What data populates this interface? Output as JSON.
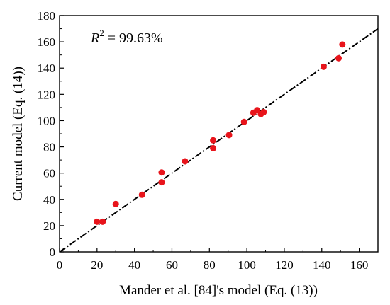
{
  "chart_data": {
    "type": "scatter",
    "title": "",
    "xlabel": "Mander et al. [84]'s model (Eq. (13))",
    "ylabel": "Current model (Eq. (14))",
    "xlim": [
      0,
      170
    ],
    "ylim": [
      0,
      180
    ],
    "x_ticks": [
      0,
      20,
      40,
      60,
      80,
      100,
      120,
      140,
      160
    ],
    "y_ticks": [
      0,
      20,
      40,
      60,
      80,
      100,
      120,
      140,
      160,
      180
    ],
    "grid": false,
    "legend": "none",
    "annotation": {
      "r_symbol": "R",
      "r_exponent": "2",
      "r_value_text": " = 99.63%"
    },
    "reference_line": {
      "style": "dash-dot",
      "color": "#000000",
      "from": [
        0,
        0
      ],
      "to": [
        170,
        170
      ]
    },
    "marker_color": "#e8141b",
    "points": [
      {
        "x": 20,
        "y": 23
      },
      {
        "x": 23,
        "y": 23
      },
      {
        "x": 30,
        "y": 36.5
      },
      {
        "x": 44,
        "y": 43.5
      },
      {
        "x": 54.5,
        "y": 60.5
      },
      {
        "x": 54.5,
        "y": 53
      },
      {
        "x": 67,
        "y": 69
      },
      {
        "x": 82,
        "y": 85
      },
      {
        "x": 82,
        "y": 79
      },
      {
        "x": 90.5,
        "y": 89
      },
      {
        "x": 98.5,
        "y": 99
      },
      {
        "x": 103.5,
        "y": 106
      },
      {
        "x": 105.5,
        "y": 108
      },
      {
        "x": 107.5,
        "y": 105
      },
      {
        "x": 109,
        "y": 106.5
      },
      {
        "x": 141,
        "y": 141
      },
      {
        "x": 149,
        "y": 147.5
      },
      {
        "x": 151,
        "y": 158
      }
    ]
  }
}
